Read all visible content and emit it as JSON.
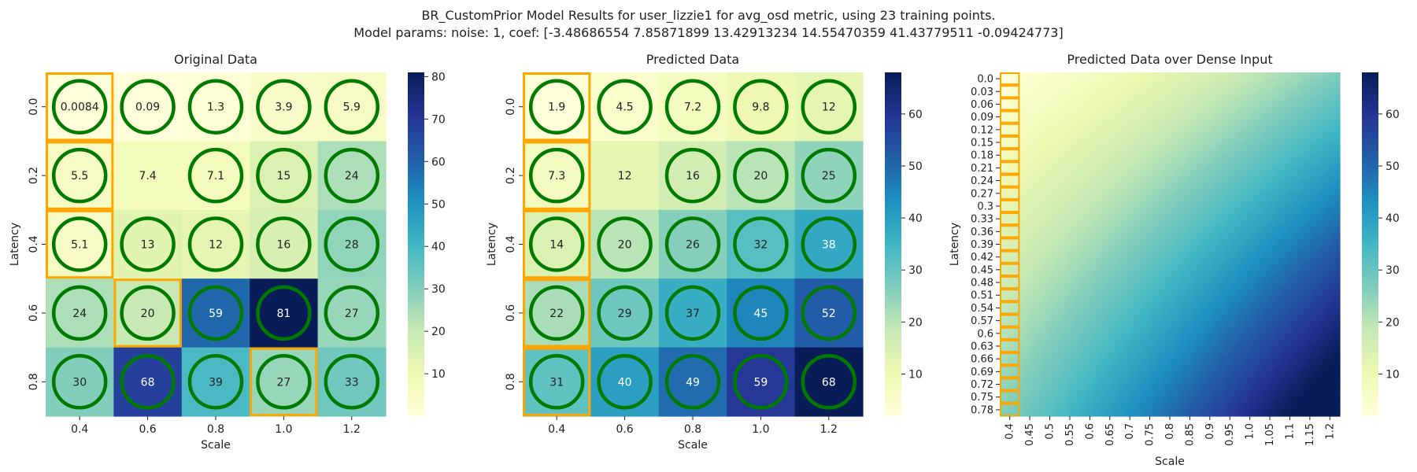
{
  "figure": {
    "suptitle_line1": "BR_CustomPrior Model Results for user_lizzie1 for avg_osd metric, using 23 training points.",
    "suptitle_line2": "Model params: noise: 1, coef: [-3.48686554  7.85871899 13.42913234 14.55470359 41.43779511 -0.09424773]"
  },
  "chart_data": [
    {
      "type": "heatmap",
      "title": "Original Data",
      "xlabel": "Scale",
      "ylabel": "Latency",
      "x_ticks": [
        "0.4",
        "0.6",
        "0.8",
        "1.0",
        "1.2"
      ],
      "y_ticks": [
        "0.0",
        "0.2",
        "0.4",
        "0.6",
        "0.8"
      ],
      "cells": [
        [
          "0.0084",
          "0.09",
          "1.3",
          "3.9",
          "5.9"
        ],
        [
          "5.5",
          "7.4",
          "7.1",
          "15",
          "24"
        ],
        [
          "5.1",
          "13",
          "12",
          "16",
          "28"
        ],
        [
          "24",
          "20",
          "59",
          "81",
          "27"
        ],
        [
          "30",
          "68",
          "39",
          "27",
          "33"
        ]
      ],
      "values": [
        [
          0.0084,
          0.09,
          1.3,
          3.9,
          5.9
        ],
        [
          5.5,
          7.4,
          7.1,
          15,
          24
        ],
        [
          5.1,
          13,
          12,
          16,
          28
        ],
        [
          24,
          20,
          59,
          81,
          27
        ],
        [
          30,
          68,
          39,
          27,
          33
        ]
      ],
      "colorbar_range": [
        0.0084,
        81
      ],
      "colorbar_ticks": [
        "10",
        "20",
        "30",
        "40",
        "50",
        "60",
        "70",
        "80"
      ],
      "colormap": "YlGnBu",
      "circled_cells": [
        [
          1,
          1,
          1,
          1,
          1
        ],
        [
          1,
          0,
          1,
          1,
          1
        ],
        [
          1,
          1,
          1,
          1,
          1
        ],
        [
          1,
          1,
          1,
          1,
          1
        ],
        [
          1,
          1,
          1,
          1,
          1
        ]
      ],
      "boxed_cells": [
        [
          0,
          0
        ],
        [
          1,
          0
        ],
        [
          2,
          0
        ],
        [
          3,
          1
        ],
        [
          4,
          3
        ]
      ]
    },
    {
      "type": "heatmap",
      "title": "Predicted Data",
      "xlabel": "Scale",
      "ylabel": "Latency",
      "x_ticks": [
        "0.4",
        "0.6",
        "0.8",
        "1.0",
        "1.2"
      ],
      "y_ticks": [
        "0.0",
        "0.2",
        "0.4",
        "0.6",
        "0.8"
      ],
      "cells": [
        [
          "1.9",
          "4.5",
          "7.2",
          "9.8",
          "12"
        ],
        [
          "7.3",
          "12",
          "16",
          "20",
          "25"
        ],
        [
          "14",
          "20",
          "26",
          "32",
          "38"
        ],
        [
          "22",
          "29",
          "37",
          "45",
          "52"
        ],
        [
          "31",
          "40",
          "49",
          "59",
          "68"
        ]
      ],
      "values": [
        [
          1.9,
          4.5,
          7.2,
          9.8,
          12
        ],
        [
          7.3,
          12,
          16,
          20,
          25
        ],
        [
          14,
          20,
          26,
          32,
          38
        ],
        [
          22,
          29,
          37,
          45,
          52
        ],
        [
          31,
          40,
          49,
          59,
          68
        ]
      ],
      "colorbar_range": [
        1.9,
        68
      ],
      "colorbar_ticks": [
        "10",
        "20",
        "30",
        "40",
        "50",
        "60"
      ],
      "colormap": "YlGnBu",
      "circled_cells": [
        [
          1,
          1,
          1,
          1,
          1
        ],
        [
          1,
          0,
          1,
          1,
          1
        ],
        [
          1,
          1,
          1,
          1,
          1
        ],
        [
          1,
          1,
          1,
          1,
          1
        ],
        [
          1,
          1,
          1,
          1,
          1
        ]
      ],
      "boxed_cells": [
        [
          0,
          0
        ],
        [
          1,
          0
        ],
        [
          2,
          0
        ],
        [
          3,
          0
        ],
        [
          4,
          0
        ]
      ]
    },
    {
      "type": "heatmap",
      "title": "Predicted Data over Dense Input",
      "xlabel": "Scale",
      "ylabel": "Latency",
      "x_ticks": [
        "0.4",
        "0.45",
        "0.5",
        "0.55",
        "0.6",
        "0.65",
        "0.7",
        "0.75",
        "0.8",
        "0.85",
        "0.9",
        "0.95",
        "1.0",
        "1.05",
        "1.1",
        "1.15",
        "1.2"
      ],
      "y_ticks": [
        "0.0",
        "0.03",
        "0.06",
        "0.09",
        "0.12",
        "0.15",
        "0.18",
        "0.21",
        "0.24",
        "0.27",
        "0.3",
        "0.33",
        "0.36",
        "0.39",
        "0.42",
        "0.45",
        "0.48",
        "0.51",
        "0.54",
        "0.57",
        "0.6",
        "0.63",
        "0.66",
        "0.69",
        "0.72",
        "0.75",
        "0.78"
      ],
      "x_range": [
        0.4,
        1.2
      ],
      "y_range": [
        0.0,
        0.8
      ],
      "colorbar_range": [
        1.9,
        68
      ],
      "colorbar_ticks": [
        "10",
        "20",
        "30",
        "40",
        "50",
        "60"
      ],
      "colormap": "YlGnBu",
      "boxed_column": "0.4"
    }
  ],
  "colors": {
    "box": "#ffa500",
    "circle": "#007a00",
    "ramp": [
      "#ffffd9",
      "#edf8b1",
      "#c7e9b4",
      "#7fcdbb",
      "#41b6c4",
      "#1d91c0",
      "#225ea8",
      "#253494",
      "#081d58"
    ]
  }
}
